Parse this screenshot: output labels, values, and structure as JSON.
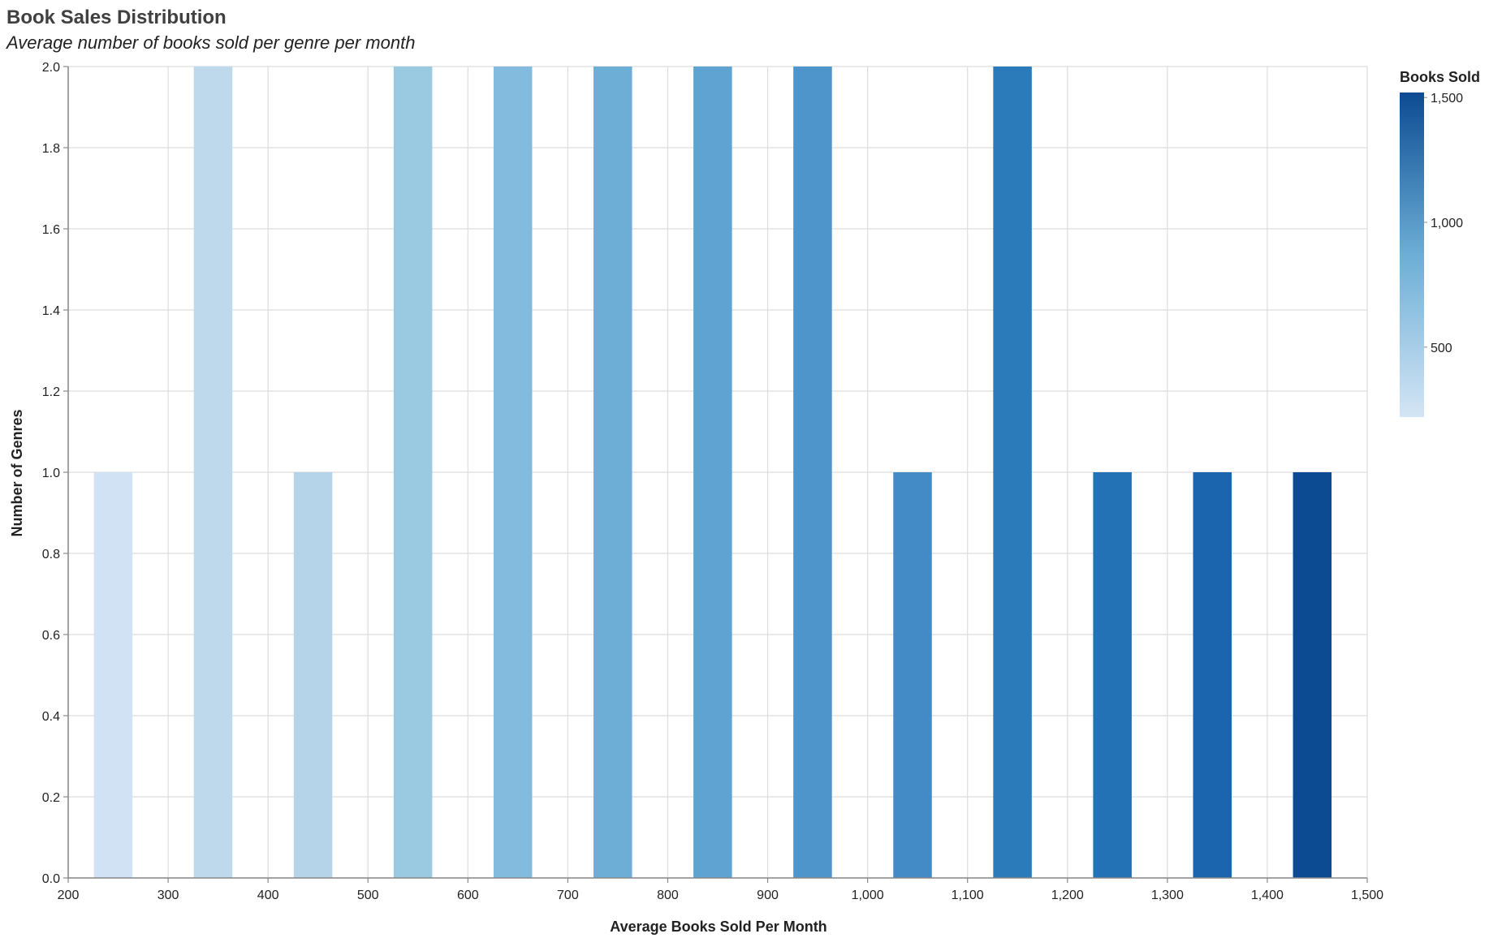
{
  "chart_data": {
    "type": "bar",
    "title": "Book Sales Distribution",
    "subtitle": "Average number of books sold per genre per month",
    "xlabel": "Average Books Sold Per Month",
    "ylabel": "Number of Genres",
    "xlim": [
      200,
      1500
    ],
    "ylim": [
      0,
      2
    ],
    "x_ticks": [
      "200",
      "300",
      "400",
      "500",
      "600",
      "700",
      "800",
      "900",
      "1,000",
      "1,100",
      "1,200",
      "1,300",
      "1,400",
      "1,500"
    ],
    "y_ticks": [
      "0.0",
      "0.2",
      "0.4",
      "0.6",
      "0.8",
      "1.0",
      "1.2",
      "1.4",
      "1.6",
      "1.8",
      "2.0"
    ],
    "grid": true,
    "bars": [
      {
        "x": 245,
        "count": 1,
        "color": "#d0e2f3"
      },
      {
        "x": 345,
        "count": 2,
        "color": "#bed8ec"
      },
      {
        "x": 445,
        "count": 1,
        "color": "#b5d4e9"
      },
      {
        "x": 545,
        "count": 2,
        "color": "#9ac9e2"
      },
      {
        "x": 645,
        "count": 2,
        "color": "#82bbdd"
      },
      {
        "x": 745,
        "count": 2,
        "color": "#6caed6"
      },
      {
        "x": 845,
        "count": 2,
        "color": "#5ea3d2"
      },
      {
        "x": 945,
        "count": 2,
        "color": "#4d95ca"
      },
      {
        "x": 1045,
        "count": 1,
        "color": "#428bc6"
      },
      {
        "x": 1145,
        "count": 2,
        "color": "#2b7bbb"
      },
      {
        "x": 1245,
        "count": 1,
        "color": "#2372b6"
      },
      {
        "x": 1345,
        "count": 1,
        "color": "#1a65ad"
      },
      {
        "x": 1445,
        "count": 1,
        "color": "#0c4b92"
      }
    ],
    "legend": {
      "title": "Books Sold",
      "placement": "top-right",
      "min": 220,
      "max": 1520,
      "ticks": [
        {
          "value": 500,
          "label": "500"
        },
        {
          "value": 1000,
          "label": "1,000"
        },
        {
          "value": 1500,
          "label": "1,500"
        }
      ],
      "color_low": "#d4e5f5",
      "color_high": "#0c4b92"
    }
  }
}
